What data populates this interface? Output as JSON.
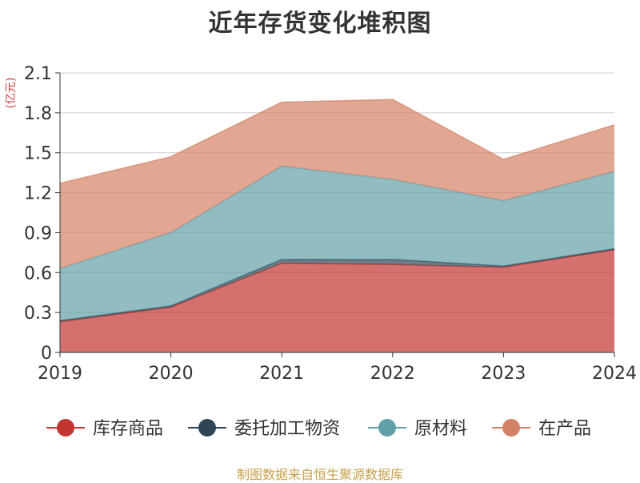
{
  "title": "近年存货变化堆积图",
  "source": "制图数据来自恒生聚源数据库",
  "chart_data": {
    "type": "area",
    "stacked": true,
    "title": "近年存货变化堆积图",
    "unit_label": "(亿元)",
    "x": [
      "2019",
      "2020",
      "2021",
      "2022",
      "2023",
      "2024"
    ],
    "ylim": [
      0,
      2.1
    ],
    "yticks": [
      "0",
      "0.3",
      "0.6",
      "0.9",
      "1.2",
      "1.5",
      "1.8",
      "2.1"
    ],
    "grid": true,
    "legend_position": "bottom",
    "series": [
      {
        "name": "库存商品",
        "color": "#c23531",
        "values": [
          0.23,
          0.34,
          0.67,
          0.66,
          0.64,
          0.77
        ]
      },
      {
        "name": "委托加工物资",
        "color": "#2f4554",
        "values": [
          0.01,
          0.01,
          0.03,
          0.04,
          0.01,
          0.01
        ]
      },
      {
        "name": "原材料",
        "color": "#61a0a8",
        "values": [
          0.39,
          0.55,
          0.7,
          0.6,
          0.49,
          0.58
        ]
      },
      {
        "name": "在产品",
        "color": "#d48265",
        "values": [
          0.64,
          0.57,
          0.48,
          0.6,
          0.31,
          0.35
        ]
      }
    ]
  }
}
